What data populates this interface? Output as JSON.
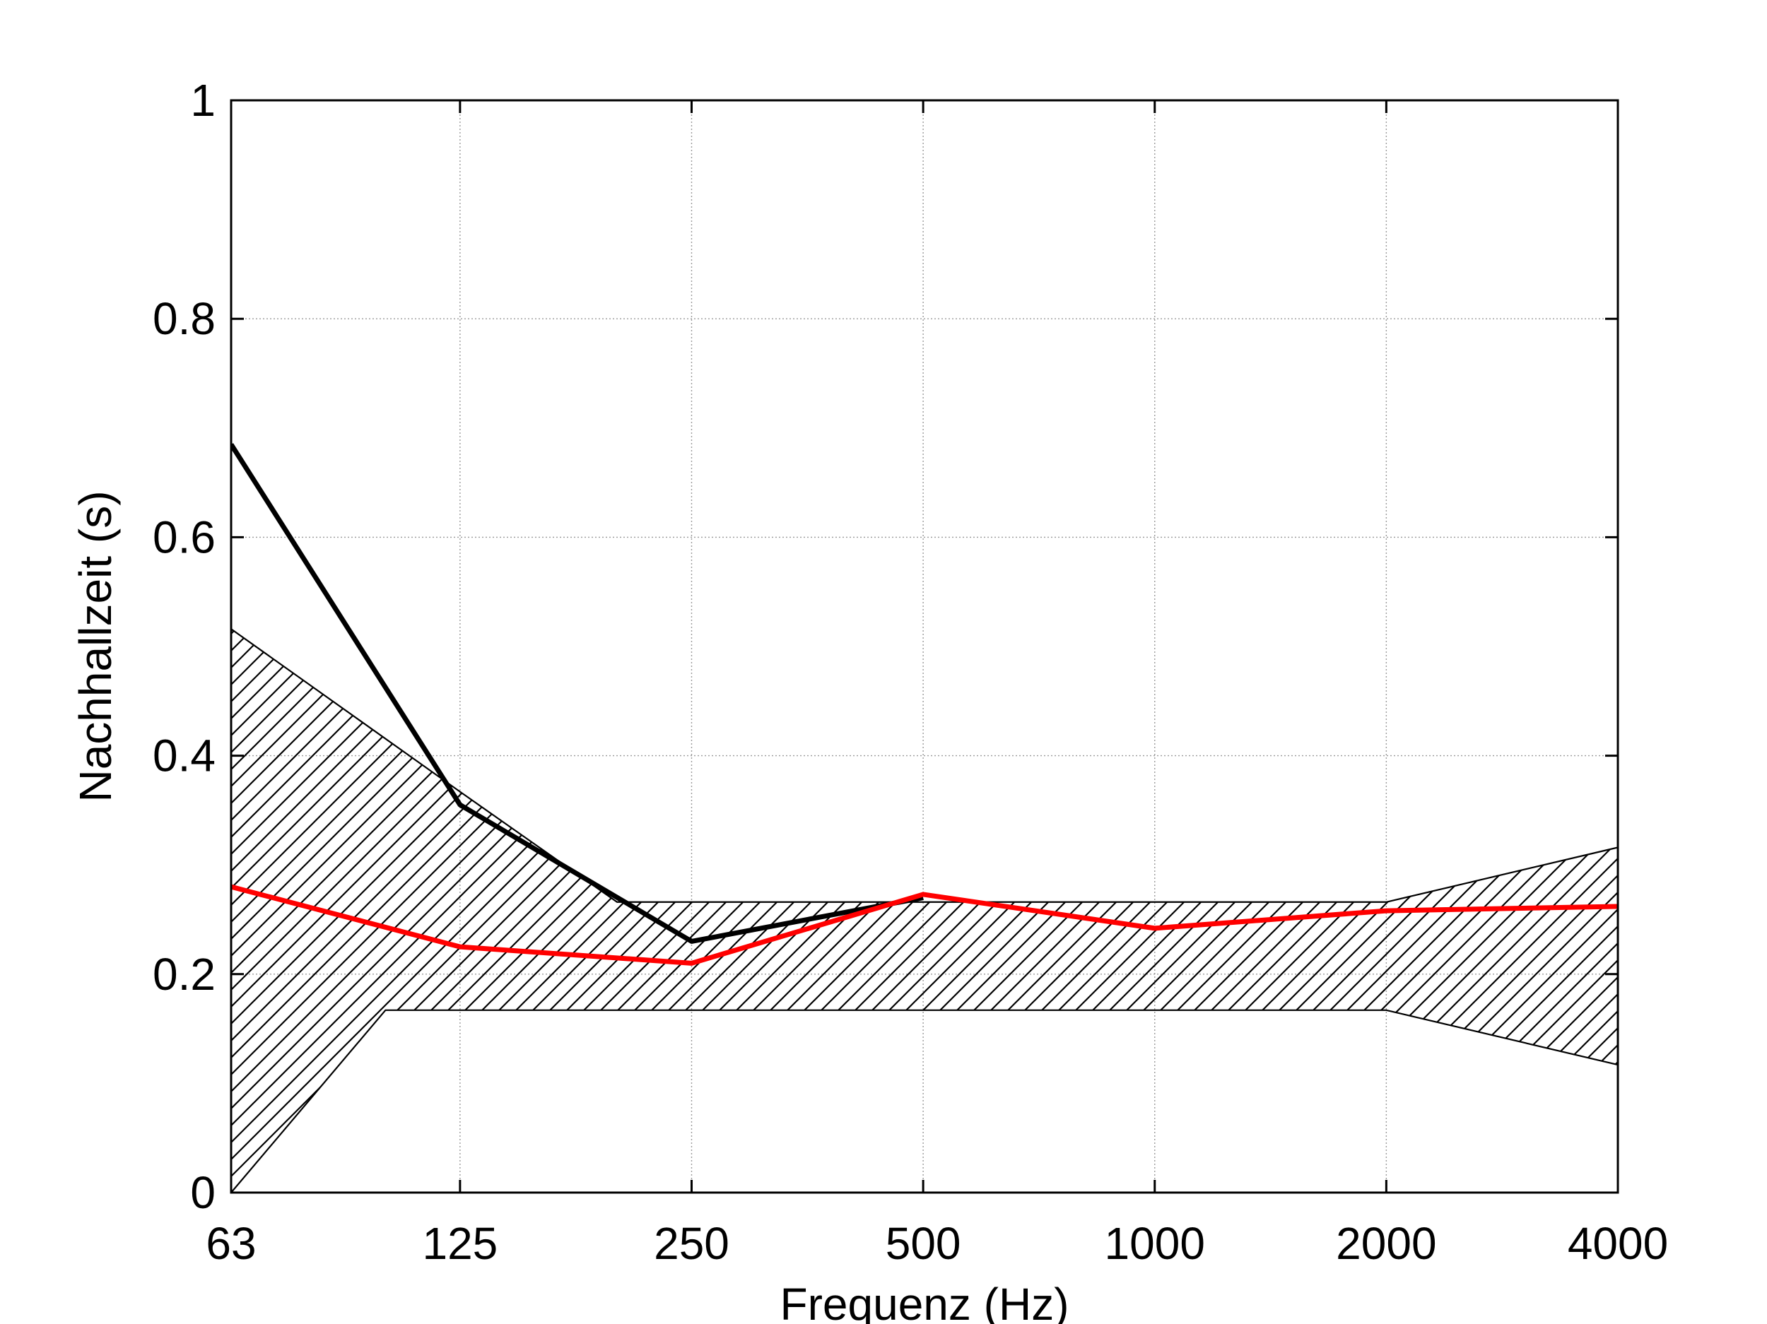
{
  "chart_data": {
    "type": "line",
    "title": "",
    "xlabel": "Frequenz (Hz)",
    "ylabel": "Nachhallzeit (s)",
    "x_scale": "log2",
    "categories": [
      "63",
      "125",
      "250",
      "500",
      "1000",
      "2000",
      "4000"
    ],
    "ylim": [
      0,
      1
    ],
    "yticks": [
      "0",
      "0.2",
      "0.4",
      "0.6",
      "0.8",
      "1"
    ],
    "grid": true,
    "legend": "none",
    "series": [
      {
        "color": "#000000",
        "values": [
          0.685,
          0.355,
          0.23,
          0.27,
          null,
          null,
          null
        ]
      },
      {
        "color": "#ff0000",
        "values": [
          0.28,
          0.225,
          0.21,
          0.273,
          0.242,
          0.258,
          0.262
        ]
      }
    ],
    "tolerance_band": {
      "pattern": "hatched",
      "upper": [
        {
          "x": 63,
          "y": 0.516
        },
        {
          "x": 125,
          "y": 0.367
        },
        {
          "x": 200,
          "y": 0.266
        },
        {
          "x": 2000,
          "y": 0.266
        },
        {
          "x": 4000,
          "y": 0.316
        }
      ],
      "lower": [
        {
          "x": 63,
          "y": 0.0
        },
        {
          "x": 100,
          "y": 0.167
        },
        {
          "x": 2000,
          "y": 0.167
        },
        {
          "x": 4000,
          "y": 0.117
        }
      ]
    }
  }
}
